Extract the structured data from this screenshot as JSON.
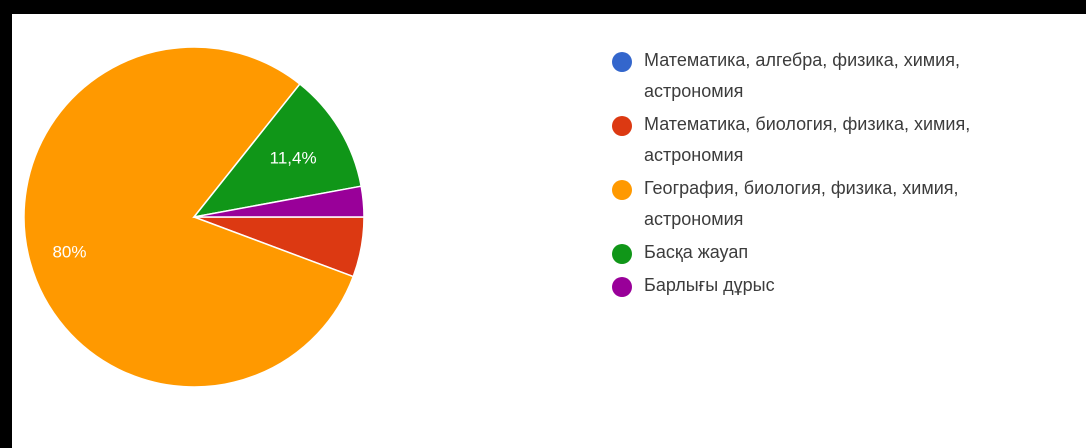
{
  "chart_data": {
    "type": "pie",
    "title": "",
    "legend_position": "right",
    "slices": [
      {
        "label": "Математика, алгебра, физика, химия, астрономия",
        "value": 0,
        "color": "#3366cc",
        "display": ""
      },
      {
        "label": "Математика, биология, физика, химия, астрономия",
        "value": 5.7,
        "color": "#dc3912",
        "display": ""
      },
      {
        "label": "География, биология, физика, химия, астрономия",
        "value": 80,
        "color": "#ff9900",
        "display": "80%"
      },
      {
        "label": "Басқа жауап",
        "value": 11.4,
        "color": "#109618",
        "display": "11,4%"
      },
      {
        "label": "Барлығы дұрыс",
        "value": 2.9,
        "color": "#990099",
        "display": ""
      }
    ]
  }
}
